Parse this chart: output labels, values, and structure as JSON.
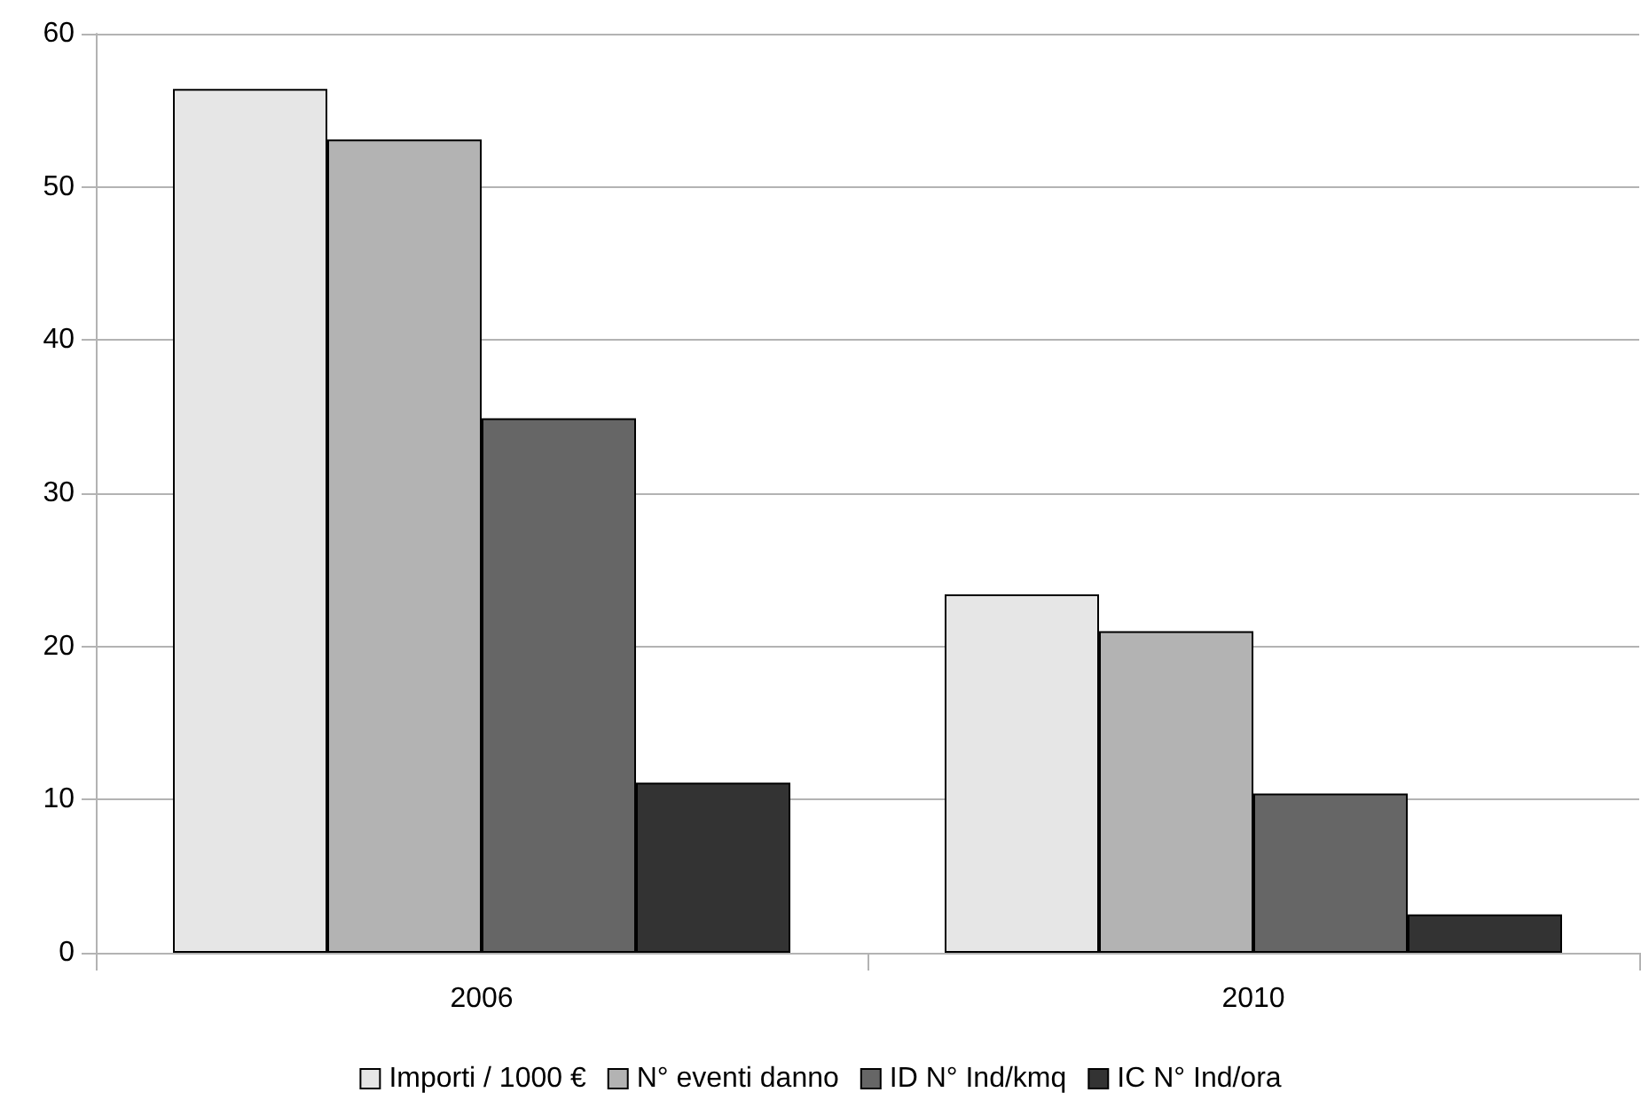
{
  "chart_data": {
    "type": "bar",
    "categories": [
      "2006",
      "2010"
    ],
    "series": [
      {
        "name": "Importi / 1000 €",
        "color": "#e6e6e6",
        "values": [
          56.4,
          23.4
        ]
      },
      {
        "name": "N° eventi danno",
        "color": "#b3b3b3",
        "values": [
          53.1,
          21.0
        ]
      },
      {
        "name": "ID N° Ind/kmq",
        "color": "#666666",
        "values": [
          34.9,
          10.4
        ]
      },
      {
        "name": "IC N° Ind/ora",
        "color": "#333333",
        "values": [
          11.1,
          2.5
        ]
      }
    ],
    "ylim": [
      0,
      60
    ],
    "yticks": [
      0,
      10,
      20,
      30,
      40,
      50,
      60
    ],
    "grid": "y",
    "legend": "bottom"
  }
}
